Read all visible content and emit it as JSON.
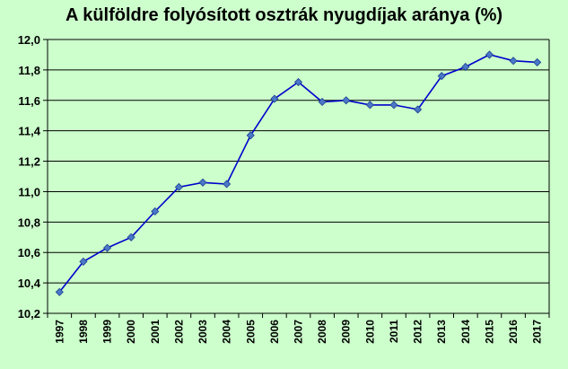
{
  "chart_data": {
    "type": "line",
    "title": "A külföldre folyósított osztrák nyugdíjak aránya (%)",
    "xlabel": "",
    "ylabel": "",
    "ylim": [
      10.2,
      12.0
    ],
    "ytick_values": [
      10.2,
      10.4,
      10.6,
      10.8,
      11.0,
      11.2,
      11.4,
      11.6,
      11.8,
      12.0
    ],
    "yticks": [
      "10,2",
      "10,4",
      "10,6",
      "10,8",
      "11,0",
      "11,2",
      "11,4",
      "11,6",
      "11,8",
      "12,0"
    ],
    "grid": true,
    "legend": "none",
    "colors": {
      "line": "#0000cc",
      "marker": "#4a78c8",
      "marker_edge": "#1f3f8f",
      "grid": "#000000",
      "background": "#ccffcc"
    },
    "categories": [
      "1997",
      "1998",
      "1999",
      "2000",
      "2001",
      "2002",
      "2003",
      "2004",
      "2005",
      "2006",
      "2007",
      "2008",
      "2009",
      "2010",
      "2011",
      "2012",
      "2013",
      "2014",
      "2015",
      "2016",
      "2017"
    ],
    "series": [
      {
        "values": [
          10.34,
          10.54,
          10.63,
          10.7,
          10.87,
          11.03,
          11.06,
          11.05,
          11.37,
          11.61,
          11.72,
          11.59,
          11.6,
          11.57,
          11.57,
          11.54,
          11.76,
          11.82,
          11.9,
          11.86,
          11.85
        ]
      }
    ]
  }
}
